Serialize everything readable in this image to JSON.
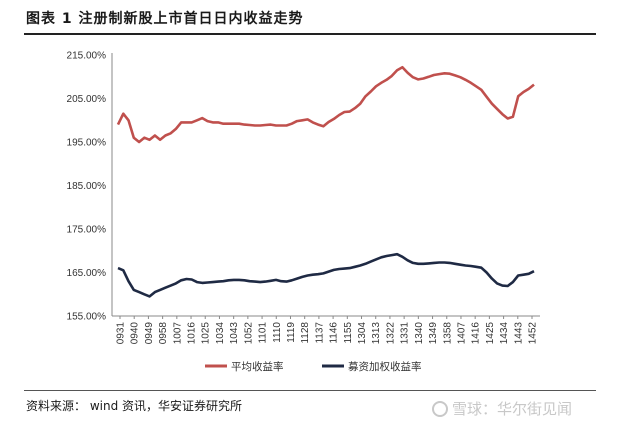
{
  "title": "图表 1 注册制新股上市首日日内收益走势",
  "source": "资料来源： wind 资讯，华安证券研究所",
  "watermark": "雪球：华尔街见闻",
  "watermark_icon": "snowball-icon",
  "chart_data": {
    "type": "line",
    "title": "",
    "xlabel": "",
    "ylabel": "",
    "ylim": [
      155,
      215
    ],
    "yticks": [
      155,
      165,
      175,
      185,
      195,
      205,
      215
    ],
    "ytick_labels": [
      "155.00%",
      "165.00%",
      "175.00%",
      "185.00%",
      "195.00%",
      "205.00%",
      "215.00%"
    ],
    "xtick_labels": [
      "0931",
      "0940",
      "0949",
      "0958",
      "1007",
      "1016",
      "1025",
      "1034",
      "1043",
      "1052",
      "1101",
      "1110",
      "1119",
      "1128",
      "1137",
      "1146",
      "1155",
      "1304",
      "1313",
      "1322",
      "1331",
      "1340",
      "1349",
      "1358",
      "1407",
      "1416",
      "1425",
      "1434",
      "1443",
      "1452"
    ],
    "grid": false,
    "legend_position": "bottom",
    "series": [
      {
        "name": "平均收益率",
        "color": "#c0504d",
        "values": [
          199,
          201.5,
          200,
          196,
          195,
          196,
          195.5,
          196.5,
          195.5,
          196.5,
          197,
          198,
          199.5,
          199.5,
          199.5,
          200,
          200.5,
          199.8,
          199.5,
          199.5,
          199.2,
          199.2,
          199.2,
          199.2,
          199.0,
          198.9,
          198.8,
          198.8,
          198.9,
          199.0,
          198.8,
          198.8,
          198.8,
          199.2,
          199.8,
          200,
          200.2,
          199.5,
          199,
          198.6,
          199.6,
          200.3,
          201.2,
          201.9,
          202.0,
          202.8,
          203.8,
          205.5,
          206.6,
          207.8,
          208.6,
          209.3,
          210.2,
          211.5,
          212.2,
          210.9,
          209.9,
          209.4,
          209.6,
          210.0,
          210.4,
          210.6,
          210.8,
          210.7,
          210.3,
          209.9,
          209.3,
          208.6,
          207.8,
          207.0,
          205.4,
          203.8,
          202.6,
          201.4,
          200.4,
          200.8,
          205.5,
          206.5,
          207.2,
          208.2
        ]
      },
      {
        "name": "募资加权收益率",
        "color": "#1f2a44",
        "values": [
          166,
          165.5,
          163,
          161,
          160.5,
          160,
          159.5,
          160.5,
          161,
          161.5,
          162,
          162.5,
          163.2,
          163.5,
          163.4,
          162.8,
          162.6,
          162.7,
          162.8,
          162.9,
          163.0,
          163.2,
          163.3,
          163.3,
          163.2,
          163.0,
          162.9,
          162.8,
          162.9,
          163.1,
          163.3,
          163.0,
          162.9,
          163.2,
          163.6,
          164.0,
          164.3,
          164.5,
          164.6,
          164.8,
          165.2,
          165.6,
          165.8,
          165.9,
          166.0,
          166.3,
          166.6,
          167.0,
          167.5,
          168.0,
          168.5,
          168.8,
          169.0,
          169.2,
          168.6,
          167.8,
          167.2,
          167.0,
          167.0,
          167.1,
          167.2,
          167.3,
          167.3,
          167.2,
          167.0,
          166.8,
          166.6,
          166.5,
          166.3,
          166.1,
          165.0,
          163.6,
          162.5,
          162.0,
          161.9,
          162.8,
          164.3,
          164.5,
          164.7,
          165.3
        ]
      }
    ]
  }
}
